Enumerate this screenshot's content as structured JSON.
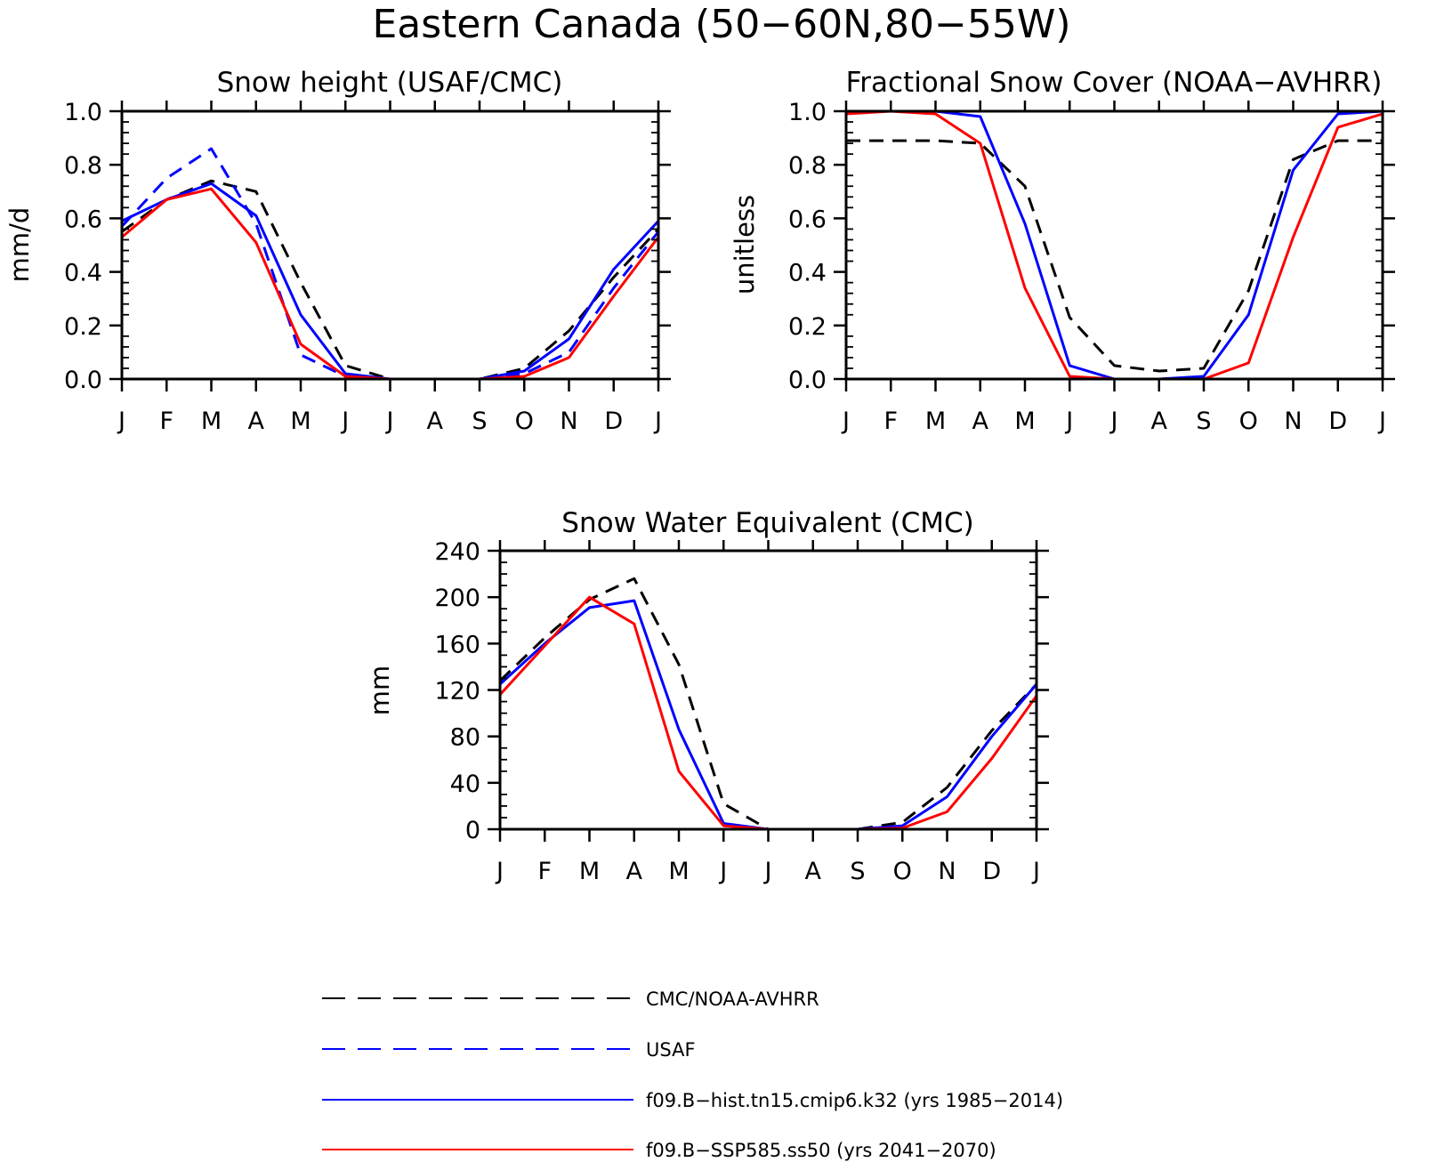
{
  "figure": {
    "title": "Eastern Canada (50−60N,80−55W)"
  },
  "legend": {
    "items": [
      {
        "label": "CMC/NOAA-AVHRR",
        "color": "#000000",
        "dash": "dashed"
      },
      {
        "label": "USAF",
        "color": "#0000ff",
        "dash": "dashed"
      },
      {
        "label": "f09.B−hist.tn15.cmip6.k32 (yrs 1985−2014)",
        "color": "#0000ff",
        "dash": "solid"
      },
      {
        "label": "f09.B−SSP585.ss50 (yrs 2041−2070)",
        "color": "#ff0000",
        "dash": "solid"
      }
    ]
  },
  "chart_data": [
    {
      "type": "line",
      "title": "Snow height (USAF/CMC)",
      "ylabel": "mm/d",
      "xlabel": "",
      "categories": [
        "J",
        "F",
        "M",
        "A",
        "M",
        "J",
        "J",
        "A",
        "S",
        "O",
        "N",
        "D",
        "J"
      ],
      "ylim": [
        0,
        1.0
      ],
      "yticks": [
        "0.0",
        "0.2",
        "0.4",
        "0.6",
        "0.8",
        "1.0"
      ],
      "grid": false,
      "series": [
        {
          "name": "CMC/NOAA-AVHRR",
          "color": "#000000",
          "dash": "dashed",
          "values": [
            0.55,
            0.67,
            0.74,
            0.7,
            0.36,
            0.05,
            0.0,
            0.0,
            0.0,
            0.04,
            0.18,
            0.38,
            0.56
          ]
        },
        {
          "name": "USAF",
          "color": "#0000ff",
          "dash": "dashed",
          "values": [
            0.57,
            0.75,
            0.86,
            0.58,
            0.09,
            0.01,
            0.0,
            0.0,
            0.0,
            0.02,
            0.1,
            0.34,
            0.55
          ]
        },
        {
          "name": "f09.B−hist.tn15.cmip6.k32 (yrs 1985−2014)",
          "color": "#0000ff",
          "dash": "solid",
          "values": [
            0.59,
            0.67,
            0.73,
            0.61,
            0.24,
            0.02,
            0.0,
            0.0,
            0.0,
            0.03,
            0.15,
            0.41,
            0.59
          ]
        },
        {
          "name": "f09.B−SSP585.ss50 (yrs 2041−2070)",
          "color": "#ff0000",
          "dash": "solid",
          "values": [
            0.53,
            0.67,
            0.71,
            0.51,
            0.13,
            0.01,
            0.0,
            0.0,
            0.0,
            0.01,
            0.08,
            0.31,
            0.53
          ]
        }
      ]
    },
    {
      "type": "line",
      "title": "Fractional Snow Cover (NOAA−AVHRR)",
      "ylabel": "unitless",
      "xlabel": "",
      "categories": [
        "J",
        "F",
        "M",
        "A",
        "M",
        "J",
        "J",
        "A",
        "S",
        "O",
        "N",
        "D",
        "J"
      ],
      "ylim": [
        0,
        1.0
      ],
      "yticks": [
        "0.0",
        "0.2",
        "0.4",
        "0.6",
        "0.8",
        "1.0"
      ],
      "grid": false,
      "series": [
        {
          "name": "CMC/NOAA-AVHRR",
          "color": "#000000",
          "dash": "dashed",
          "values": [
            0.89,
            0.89,
            0.89,
            0.88,
            0.72,
            0.23,
            0.05,
            0.03,
            0.04,
            0.33,
            0.82,
            0.89,
            0.89
          ]
        },
        {
          "name": "f09.B−hist.tn15.cmip6.k32 (yrs 1985−2014)",
          "color": "#0000ff",
          "dash": "solid",
          "values": [
            1.0,
            1.0,
            1.0,
            0.98,
            0.58,
            0.05,
            0.0,
            0.0,
            0.01,
            0.24,
            0.78,
            0.99,
            1.0
          ]
        },
        {
          "name": "f09.B−SSP585.ss50 (yrs 2041−2070)",
          "color": "#ff0000",
          "dash": "solid",
          "values": [
            0.99,
            1.0,
            0.99,
            0.88,
            0.34,
            0.01,
            0.0,
            0.0,
            0.0,
            0.06,
            0.53,
            0.94,
            0.99
          ]
        }
      ]
    },
    {
      "type": "line",
      "title": "Snow Water Equivalent (CMC)",
      "ylabel": "mm",
      "xlabel": "",
      "categories": [
        "J",
        "F",
        "M",
        "A",
        "M",
        "J",
        "J",
        "A",
        "S",
        "O",
        "N",
        "D",
        "J"
      ],
      "ylim": [
        0,
        240
      ],
      "yticks": [
        "0",
        "40",
        "80",
        "120",
        "160",
        "200",
        "240"
      ],
      "grid": false,
      "series": [
        {
          "name": "CMC/NOAA-AVHRR",
          "color": "#000000",
          "dash": "dashed",
          "values": [
            128,
            165,
            198,
            216,
            142,
            22,
            0,
            0,
            0,
            6,
            36,
            85,
            125
          ]
        },
        {
          "name": "f09.B−hist.tn15.cmip6.k32 (yrs 1985−2014)",
          "color": "#0000ff",
          "dash": "solid",
          "values": [
            125,
            160,
            191,
            197,
            86,
            5,
            0,
            0,
            0,
            3,
            28,
            80,
            125
          ]
        },
        {
          "name": "f09.B−SSP585.ss50 (yrs 2041−2070)",
          "color": "#ff0000",
          "dash": "solid",
          "values": [
            116,
            158,
            200,
            177,
            50,
            3,
            0,
            0,
            0,
            1,
            15,
            61,
            115
          ]
        }
      ]
    }
  ]
}
